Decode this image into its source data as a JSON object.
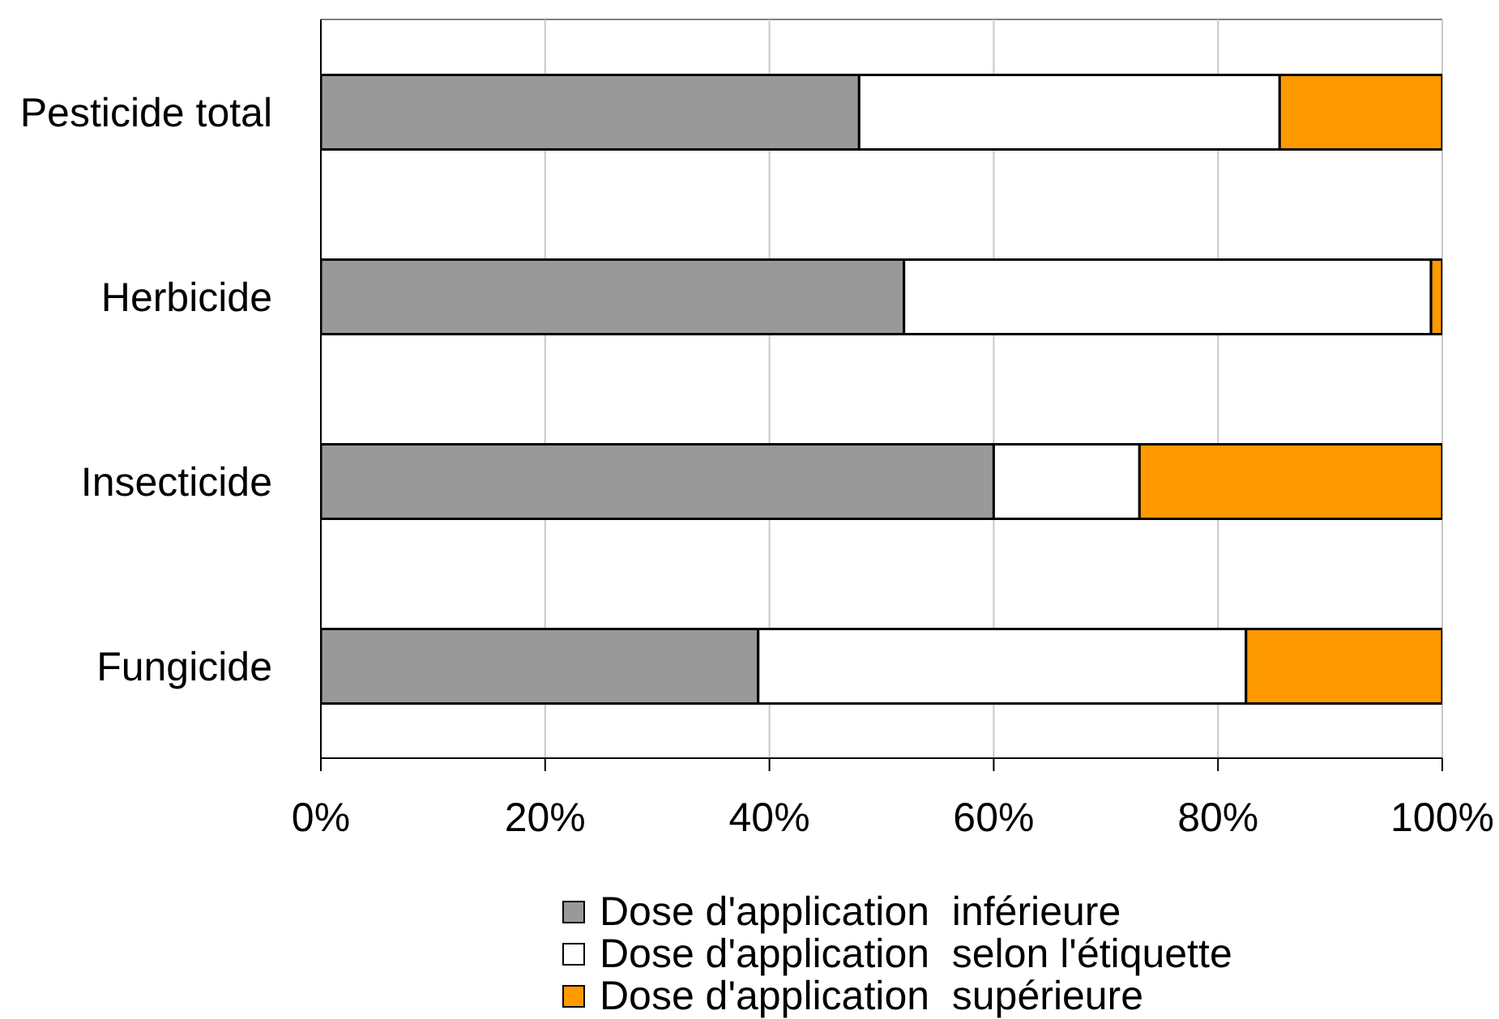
{
  "chart_data": {
    "type": "bar",
    "orientation": "horizontal",
    "stacked": true,
    "categories": [
      "Pesticide total",
      "Herbicide",
      "Insecticide",
      "Fungicide"
    ],
    "series": [
      {
        "name": "Dose d'application  inférieure",
        "color": "#999999",
        "values": [
          48,
          52,
          60,
          39
        ]
      },
      {
        "name": "Dose d'application  selon l'étiquette",
        "color": "#ffffff",
        "values": [
          37.5,
          47,
          13,
          43.5
        ]
      },
      {
        "name": "Dose d'application  supérieure",
        "color": "#ff9900",
        "values": [
          14.5,
          1,
          27,
          17.5
        ]
      }
    ],
    "xlim": [
      0,
      100
    ],
    "xticks": [
      {
        "value": 0,
        "label": "0%"
      },
      {
        "value": 20,
        "label": "20%"
      },
      {
        "value": 40,
        "label": "40%"
      },
      {
        "value": 60,
        "label": "60%"
      },
      {
        "value": 80,
        "label": "80%"
      },
      {
        "value": 100,
        "label": "100%"
      }
    ],
    "grid": "x",
    "legend": "bottom"
  }
}
